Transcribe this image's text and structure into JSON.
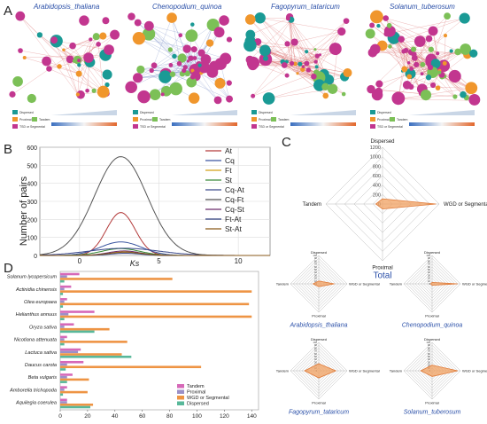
{
  "panels": {
    "A": "A",
    "B": "B",
    "C": "C",
    "D": "D"
  },
  "panel_a": {
    "networks": [
      {
        "title": "Arabidopsis_thaliana"
      },
      {
        "title": "Chenopodium_quinoa"
      },
      {
        "title": "Fagopyrum_tataricum"
      },
      {
        "title": "Solanum_tuberosum"
      }
    ],
    "legend": {
      "dispersed": "Dispersed",
      "proximal": "Proximal",
      "tandem": "Tandem",
      "wgd": "TSD or Segmental"
    },
    "colors": {
      "dispersed": "#1a9a95",
      "proximal": "#f0962c",
      "tandem": "#7cc057",
      "wgd": "#c2368f",
      "edge": "#d96b6b",
      "edge_blue": "#7a8fc8"
    }
  },
  "chart_data": [
    {
      "type": "line",
      "panel": "B",
      "xlabel": "Ks",
      "ylabel": "Number of pairs",
      "xlim": [
        -2.5,
        12
      ],
      "ylim": [
        0,
        600
      ],
      "xticks": [
        0,
        5,
        10
      ],
      "yticks": [
        0,
        100,
        200,
        300,
        400,
        500,
        600
      ],
      "grid": true,
      "legend_position": "top-right",
      "series": [
        {
          "name": "At",
          "color": "#b33a3a",
          "peak_x": 2.6,
          "peak_y": 238,
          "sd": 0.9
        },
        {
          "name": "Cq",
          "color": "#3a55a0",
          "peak_x": 2.6,
          "peak_y": 75,
          "sd": 1.3
        },
        {
          "name": "Ft",
          "color": "#d4a017",
          "peak_x": 2.8,
          "peak_y": 20,
          "sd": 0.9
        },
        {
          "name": "St",
          "color": "#3a8a3a",
          "peak_x": 2.6,
          "peak_y": 38,
          "sd": 1.2
        },
        {
          "name": "Cq-At",
          "color": "#3c4a8c",
          "peak_x": 2.8,
          "peak_y": 40,
          "sd": 2.2
        },
        {
          "name": "Cq-Ft",
          "color": "#555555",
          "peak_x": 2.6,
          "peak_y": 548,
          "sd": 1.65
        },
        {
          "name": "Cq-St",
          "color": "#6a2a6a",
          "peak_x": 2.8,
          "peak_y": 25,
          "sd": 1.0
        },
        {
          "name": "Ft-At",
          "color": "#2a3a7a",
          "peak_x": 2.9,
          "peak_y": 12,
          "sd": 1.0
        },
        {
          "name": "St-At",
          "color": "#8a5a1a",
          "peak_x": 2.9,
          "peak_y": 18,
          "sd": 1.1
        }
      ]
    },
    {
      "type": "radar",
      "panel": "C",
      "title": "Total",
      "axes": [
        "Dispersed",
        "WGD or Segmental",
        "Proximal",
        "Tandem"
      ],
      "rticks": [
        0,
        200,
        400,
        600,
        800,
        1000,
        1200
      ],
      "rmax": 1200,
      "values": [
        110,
        1130,
        105,
        140
      ],
      "color": "#f0a060"
    },
    {
      "type": "radar",
      "panel": "C",
      "title": "Arabidopsis_thaliana",
      "axes": [
        "Dispersed",
        "WGD or Segmental",
        "Proximal",
        "Tandem"
      ],
      "rticks": [
        0,
        10,
        20,
        30,
        40,
        50,
        60,
        70,
        80,
        90,
        100
      ],
      "rmax": 100,
      "values": [
        10,
        55,
        10,
        20
      ],
      "color": "#f0a060"
    },
    {
      "type": "radar",
      "panel": "C",
      "title": "Chenopodium_quinoa",
      "axes": [
        "Dispersed",
        "WGD or Segmental",
        "Proximal",
        "Tandem"
      ],
      "rticks": [
        0,
        10,
        20,
        30,
        40,
        50,
        60,
        70,
        80,
        90,
        100
      ],
      "rmax": 100,
      "values": [
        5,
        90,
        5,
        5
      ],
      "color": "#f0a060"
    },
    {
      "type": "radar",
      "panel": "C",
      "title": "Fagopyrum_tataricum",
      "axes": [
        "Dispersed",
        "WGD or Segmental",
        "Proximal",
        "Tandem"
      ],
      "rticks": [
        0,
        10,
        20,
        30,
        40,
        50,
        60,
        70,
        80,
        90,
        100
      ],
      "rmax": 100,
      "values": [
        25,
        60,
        25,
        50
      ],
      "color": "#f0a060"
    },
    {
      "type": "radar",
      "panel": "C",
      "title": "Solanum_tuberosum",
      "axes": [
        "Dispersed",
        "WGD or Segmental",
        "Proximal",
        "Tandem"
      ],
      "rticks": [
        0,
        10,
        20,
        30,
        40,
        50,
        60,
        70,
        80,
        90,
        100
      ],
      "rmax": 100,
      "values": [
        20,
        90,
        20,
        40
      ],
      "color": "#f0a060"
    },
    {
      "type": "bar",
      "panel": "D",
      "orientation": "horizontal",
      "categories": [
        "Solanum lycopersicum",
        "Actinidia chinensis",
        "Olea europaea",
        "Helianthus annuus",
        "Oryza sativa",
        "Nicotiana attenuata",
        "Lactuca sativa",
        "Daucus carota",
        "Beta vulgaris",
        "Amborella trichopoda",
        "Aquilegia coerulea"
      ],
      "xlim": [
        0,
        145
      ],
      "xticks": [
        0,
        20,
        40,
        60,
        80,
        100,
        120,
        140
      ],
      "legend_position": "bottom-right",
      "series": [
        {
          "name": "Tandem",
          "color": "#d668b8",
          "values": [
            14,
            8,
            5,
            25,
            10,
            5,
            15,
            17,
            9,
            5,
            5
          ]
        },
        {
          "name": "Proximal",
          "color": "#9b90c8",
          "values": [
            5,
            3,
            3,
            6,
            3,
            3,
            13,
            5,
            5,
            3,
            5
          ]
        },
        {
          "name": "WGD or Segmental",
          "color": "#ee9444",
          "values": [
            82,
            140,
            138,
            140,
            36,
            49,
            45,
            103,
            21,
            20,
            24
          ]
        },
        {
          "name": "Dispersed",
          "color": "#58b89a",
          "values": [
            3,
            2,
            2,
            3,
            25,
            3,
            52,
            4,
            5,
            2,
            22
          ]
        }
      ]
    }
  ]
}
